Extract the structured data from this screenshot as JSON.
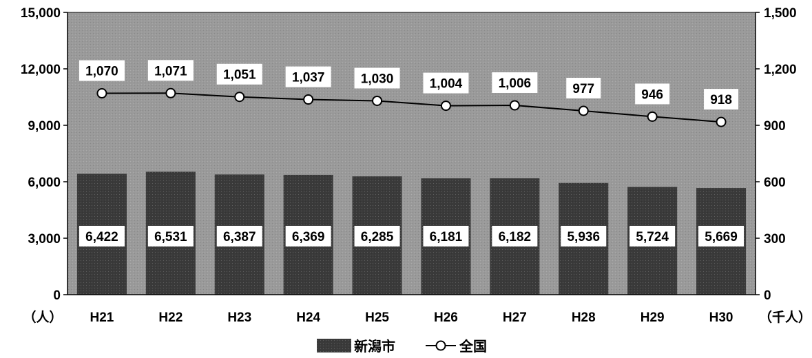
{
  "chart_data": {
    "type": "bar",
    "categories": [
      "H21",
      "H22",
      "H23",
      "H24",
      "H25",
      "H26",
      "H27",
      "H28",
      "H29",
      "H30"
    ],
    "series": [
      {
        "name": "新潟市",
        "kind": "bar",
        "axis": "left",
        "values": [
          6422,
          6531,
          6387,
          6369,
          6285,
          6181,
          6182,
          5936,
          5724,
          5669
        ],
        "labels": [
          "6,422",
          "6,531",
          "6,387",
          "6,369",
          "6,285",
          "6,181",
          "6,182",
          "5,936",
          "5,724",
          "5,669"
        ]
      },
      {
        "name": "全国",
        "kind": "line",
        "axis": "right",
        "values": [
          1070,
          1071,
          1051,
          1037,
          1030,
          1004,
          1006,
          977,
          946,
          918
        ],
        "labels": [
          "1,070",
          "1,071",
          "1,051",
          "1,037",
          "1,030",
          "1,004",
          "1,006",
          "977",
          "946",
          "918"
        ]
      }
    ],
    "y_left": {
      "ylim": [
        0,
        15000
      ],
      "ticks": [
        0,
        3000,
        6000,
        9000,
        12000,
        15000
      ],
      "tick_labels": [
        "0",
        "3,000",
        "6,000",
        "9,000",
        "12,000",
        "15,000"
      ],
      "unit": "（人）"
    },
    "y_right": {
      "ylim": [
        0,
        1500
      ],
      "ticks": [
        0,
        300,
        600,
        900,
        1200,
        1500
      ],
      "tick_labels": [
        "0",
        "300",
        "600",
        "900",
        "1,200",
        "1,500"
      ],
      "unit": "（千人）"
    },
    "legend": {
      "position": "bottom-center",
      "items": [
        "新潟市",
        "全国"
      ]
    },
    "grid": false,
    "colors": {
      "plot_bg": "#9a9a9a",
      "bar": "#3a3a3a",
      "line": "#000000",
      "marker_fill": "#ffffff",
      "label_box": "#ffffff"
    }
  }
}
